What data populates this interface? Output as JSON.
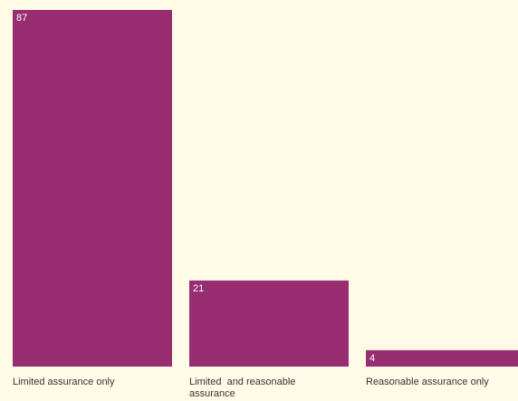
{
  "chart_data": {
    "type": "bar",
    "categories": [
      [
        "Limited assurance only"
      ],
      [
        "Limited  and reasonable",
        "assurance"
      ],
      [
        "Reasonable assurance only"
      ]
    ],
    "values": [
      87,
      21,
      4
    ],
    "ylim": [
      0,
      87
    ],
    "grid": false,
    "legend": "none"
  },
  "colors": {
    "bar": "#982d72",
    "background": "#fffbe7",
    "value_label": "#ffffff",
    "category_label": "#333333"
  }
}
